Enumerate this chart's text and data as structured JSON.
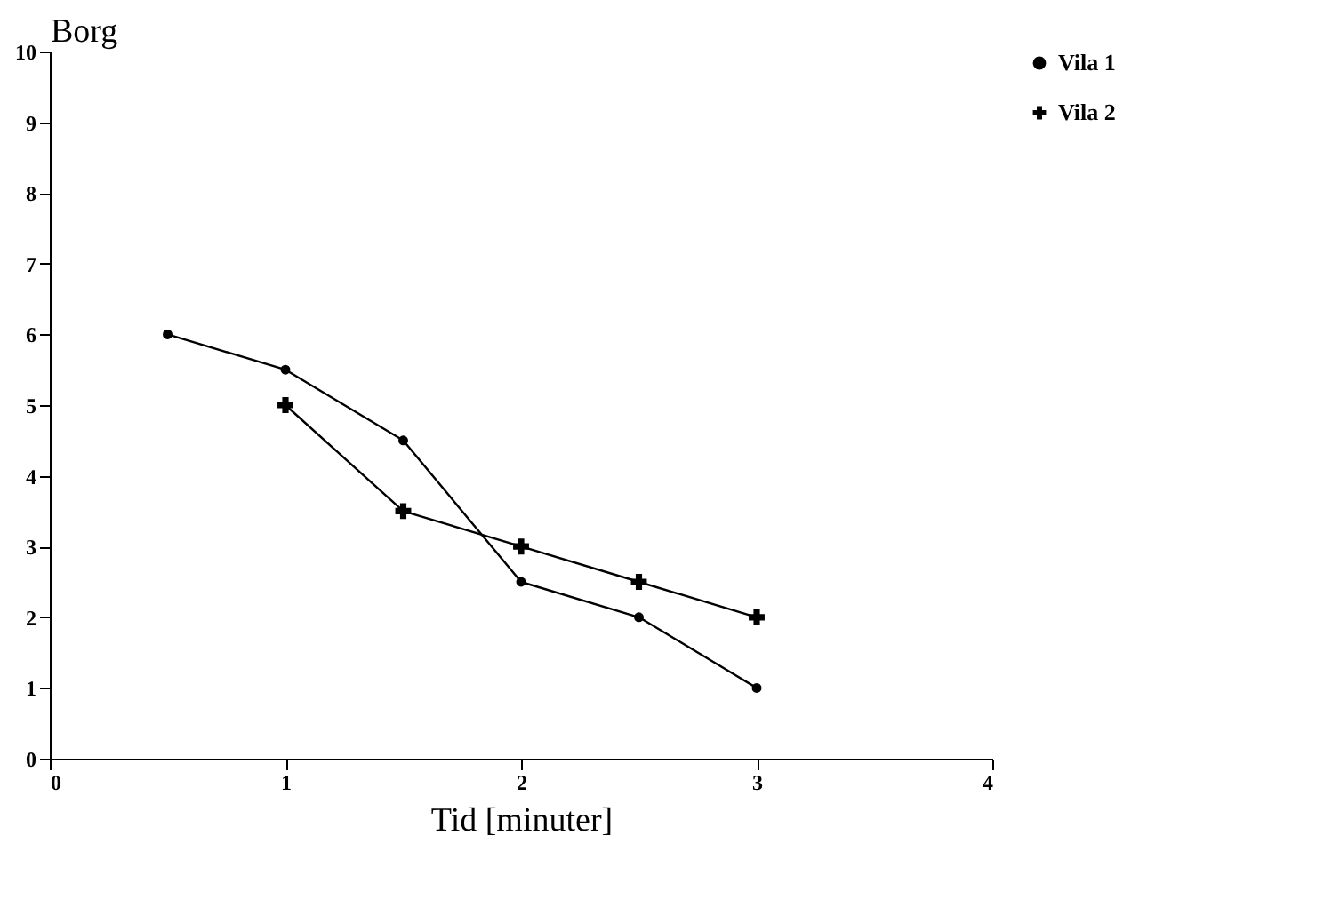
{
  "chart_data": {
    "type": "line",
    "xlabel": "Tid [minuter]",
    "ylabel": "Borg",
    "xlim": [
      0,
      4
    ],
    "xticks": [
      0,
      1,
      2,
      3,
      4
    ],
    "ylim": [
      0,
      10
    ],
    "yticks": [
      0,
      1,
      2,
      3,
      4,
      5,
      6,
      7,
      8,
      9,
      10
    ],
    "grid": false,
    "legend": "right",
    "line_style": "solid",
    "series": [
      {
        "name": "Vila 1",
        "color": "#000000",
        "marker": "circle",
        "x": [
          0.5,
          1,
          1.5,
          2,
          2.5,
          3
        ],
        "values": [
          6,
          5.5,
          4.5,
          2.5,
          2,
          1
        ]
      },
      {
        "name": "Vila 2",
        "color": "#000000",
        "marker": "cross",
        "x": [
          1,
          1.5,
          2,
          2.5,
          3
        ],
        "values": [
          5,
          3.5,
          3,
          2.5,
          2
        ]
      }
    ]
  }
}
